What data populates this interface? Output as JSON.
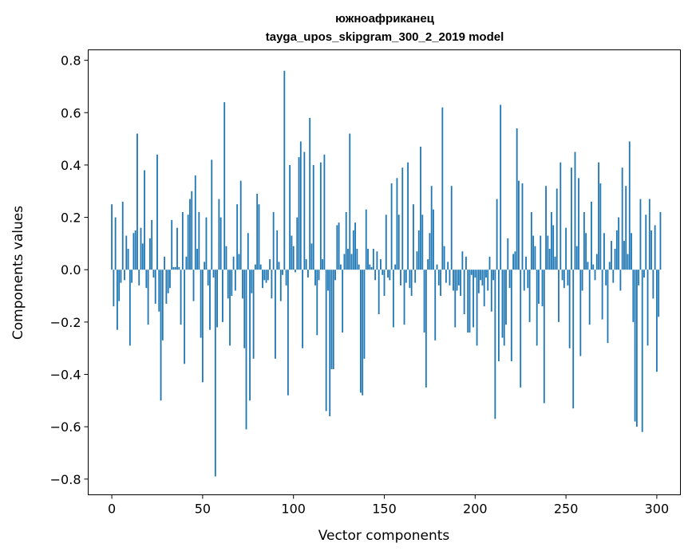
{
  "chart_data": {
    "type": "bar",
    "title": "южноафриканец",
    "subtitle": "tayga_upos_skipgram_300_2_2019 model",
    "xlabel": "Vector components",
    "ylabel": "Components values",
    "xlim": [
      -13,
      313
    ],
    "ylim": [
      -0.86,
      0.84
    ],
    "xticks": [
      0,
      50,
      100,
      150,
      200,
      250,
      300
    ],
    "yticks": [
      -0.8,
      -0.6,
      -0.4,
      -0.2,
      0.0,
      0.2,
      0.4,
      0.6,
      0.8
    ],
    "ytick_labels": [
      "−0.8",
      "−0.6",
      "−0.4",
      "−0.2",
      "0.0",
      "0.2",
      "0.4",
      "0.6",
      "0.8"
    ],
    "bar_color": "#1f77b4",
    "grid": false,
    "values": [
      0.25,
      -0.14,
      0.2,
      -0.23,
      -0.12,
      -0.05,
      0.26,
      -0.04,
      0.13,
      0.08,
      -0.29,
      -0.05,
      0.14,
      0.15,
      0.52,
      -0.06,
      0.16,
      0.1,
      0.38,
      -0.07,
      -0.21,
      0.12,
      0.19,
      -0.03,
      -0.13,
      0.44,
      -0.16,
      -0.5,
      -0.27,
      0.05,
      -0.13,
      -0.09,
      -0.07,
      0.19,
      0.01,
      0.01,
      0.16,
      0.01,
      -0.21,
      0.22,
      -0.36,
      0.05,
      0.21,
      0.27,
      0.3,
      -0.12,
      0.36,
      0.08,
      0.22,
      -0.26,
      -0.43,
      0.03,
      0.2,
      -0.06,
      -0.23,
      0.42,
      -0.03,
      -0.79,
      -0.22,
      0.27,
      0.2,
      -0.2,
      0.64,
      0.09,
      -0.11,
      -0.29,
      -0.1,
      0.05,
      -0.08,
      0.25,
      0.06,
      0.34,
      -0.11,
      -0.3,
      -0.61,
      0.14,
      -0.5,
      -0.09,
      -0.34,
      0.02,
      0.29,
      0.25,
      0.02,
      -0.07,
      -0.04,
      -0.05,
      -0.04,
      0.04,
      -0.11,
      0.22,
      -0.34,
      0.15,
      0.03,
      -0.12,
      -0.02,
      0.76,
      -0.06,
      -0.48,
      0.4,
      0.13,
      0.09,
      -0.01,
      0.2,
      0.43,
      0.49,
      -0.3,
      0.45,
      0.04,
      -0.03,
      0.58,
      0.1,
      0.4,
      -0.06,
      -0.25,
      -0.04,
      0.41,
      0.04,
      0.44,
      -0.54,
      -0.08,
      -0.56,
      -0.38,
      -0.38,
      -0.04,
      0.17,
      0.18,
      0.02,
      -0.24,
      0.06,
      0.22,
      0.08,
      0.52,
      0.06,
      0.15,
      0.18,
      0.08,
      0.02,
      -0.47,
      -0.48,
      -0.34,
      0.23,
      0.08,
      0.02,
      0.01,
      0.08,
      -0.04,
      0.07,
      -0.17,
      0.04,
      -0.02,
      -0.1,
      0.21,
      -0.03,
      -0.04,
      0.33,
      -0.22,
      0.02,
      0.35,
      0.21,
      -0.06,
      0.39,
      -0.21,
      -0.05,
      0.41,
      -0.07,
      -0.1,
      0.25,
      -0.05,
      0.07,
      0.15,
      0.47,
      0.21,
      -0.24,
      -0.45,
      0.04,
      0.14,
      0.32,
      0.23,
      -0.27,
      0.02,
      -0.06,
      -0.1,
      0.62,
      0.09,
      -0.05,
      0.03,
      -0.06,
      0.32,
      -0.08,
      -0.22,
      -0.08,
      -0.06,
      -0.1,
      0.07,
      -0.17,
      0.05,
      -0.24,
      -0.24,
      -0.02,
      -0.22,
      -0.03,
      -0.29,
      -0.09,
      -0.04,
      -0.06,
      -0.14,
      -0.03,
      -0.08,
      0.05,
      -0.16,
      -0.04,
      -0.57,
      0.27,
      -0.35,
      0.63,
      -0.26,
      -0.29,
      -0.21,
      0.12,
      -0.07,
      -0.35,
      0.06,
      0.07,
      0.54,
      0.34,
      -0.45,
      0.33,
      -0.08,
      0.05,
      -0.07,
      -0.2,
      0.22,
      0.13,
      0.09,
      -0.29,
      -0.13,
      0.13,
      -0.14,
      -0.51,
      0.32,
      0.13,
      0.08,
      0.22,
      0.17,
      0.05,
      0.31,
      -0.2,
      0.41,
      -0.04,
      -0.07,
      0.16,
      -0.06,
      -0.3,
      0.39,
      -0.53,
      0.45,
      0.09,
      0.35,
      -0.33,
      -0.08,
      0.22,
      0.14,
      0.03,
      -0.21,
      0.26,
      0.02,
      -0.04,
      0.06,
      0.41,
      0.33,
      -0.19,
      0.14,
      -0.06,
      -0.28,
      0.03,
      0.11,
      -0.05,
      0.08,
      0.15,
      0.2,
      -0.08,
      0.39,
      0.11,
      0.32,
      0.06,
      0.49,
      0.14,
      -0.2,
      -0.58,
      -0.6,
      -0.06,
      0.27,
      -0.62,
      -0.03,
      0.21,
      -0.29,
      0.27,
      0.15,
      -0.11,
      0.17,
      -0.39,
      -0.18,
      0.22
    ]
  }
}
